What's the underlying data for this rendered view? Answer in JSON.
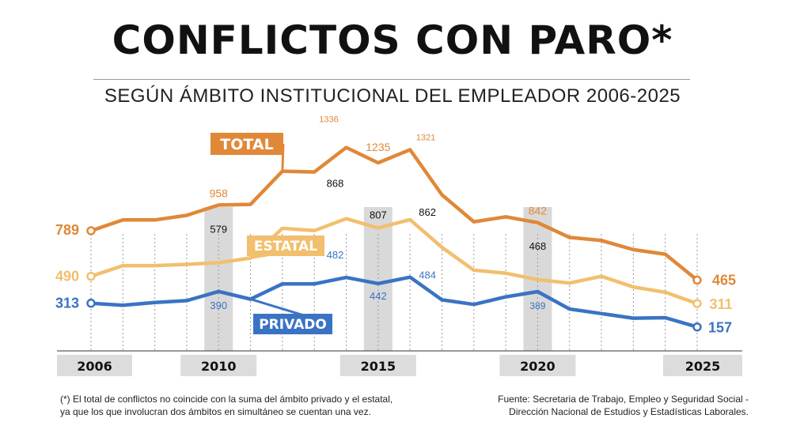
{
  "header": {
    "title": "CONFLICTOS CON PARO*",
    "subtitle": "SEGÚN ÁMBITO INSTITUCIONAL DEL EMPLEADOR 2006-2025"
  },
  "chart_data": {
    "type": "line",
    "x": [
      2006,
      2007,
      2008,
      2009,
      2010,
      2011,
      2012,
      2013,
      2014,
      2015,
      2016,
      2017,
      2018,
      2019,
      2020,
      2021,
      2022,
      2023,
      2024,
      2025
    ],
    "x_tick_labels": [
      "2006",
      "2010",
      "2015",
      "2020",
      "2025"
    ],
    "highlighted_years": [
      2010,
      2015,
      2020
    ],
    "ylim": [
      0,
      1400
    ],
    "series": [
      {
        "name": "TOTAL",
        "color": "#e08838",
        "values": [
          789,
          860,
          860,
          890,
          958,
          962,
          1180,
          1175,
          1336,
          1235,
          1321,
          1025,
          848,
          880,
          842,
          745,
          725,
          665,
          635,
          465
        ],
        "labels": [
          {
            "year": 2006,
            "text": "789"
          },
          {
            "year": 2010,
            "text": "958"
          },
          {
            "year": 2014,
            "text": "1336"
          },
          {
            "year": 2015,
            "text": "1235"
          },
          {
            "year": 2016,
            "text": "1321"
          },
          {
            "year": 2020,
            "text": "842"
          },
          {
            "year": 2025,
            "text": "465"
          }
        ]
      },
      {
        "name": "ESTATAL",
        "color": "#f2bf6e",
        "values": [
          490,
          560,
          560,
          568,
          579,
          610,
          805,
          790,
          868,
          807,
          862,
          680,
          530,
          510,
          468,
          445,
          490,
          420,
          385,
          311
        ],
        "labels": [
          {
            "year": 2006,
            "text": "490"
          },
          {
            "year": 2010,
            "text": "579"
          },
          {
            "year": 2014,
            "text": "868"
          },
          {
            "year": 2015,
            "text": "807"
          },
          {
            "year": 2016,
            "text": "862"
          },
          {
            "year": 2020,
            "text": "468"
          },
          {
            "year": 2025,
            "text": "311"
          }
        ]
      },
      {
        "name": "PRIVADO",
        "color": "#3a73c4",
        "values": [
          313,
          300,
          318,
          330,
          390,
          340,
          440,
          440,
          482,
          442,
          484,
          335,
          305,
          355,
          389,
          275,
          245,
          215,
          218,
          157
        ],
        "labels": [
          {
            "year": 2006,
            "text": "313"
          },
          {
            "year": 2010,
            "text": "390"
          },
          {
            "year": 2014,
            "text": "482"
          },
          {
            "year": 2015,
            "text": "442"
          },
          {
            "year": 2016,
            "text": "484"
          },
          {
            "year": 2020,
            "text": "389"
          },
          {
            "year": 2025,
            "text": "157"
          }
        ]
      }
    ]
  },
  "footnote": {
    "note_line1": "(*) El total de conflictos no coincide con la suma del ámbito privado y el estatal,",
    "note_line2": "ya que los que involucran dos ámbitos en simultáneo se cuentan una vez.",
    "source_line1": "Fuente: Secretaria de Trabajo, Empleo y Seguridad Social -",
    "source_line2": "Dirección Nacional de Estudios y Estadísticas Laborales."
  }
}
